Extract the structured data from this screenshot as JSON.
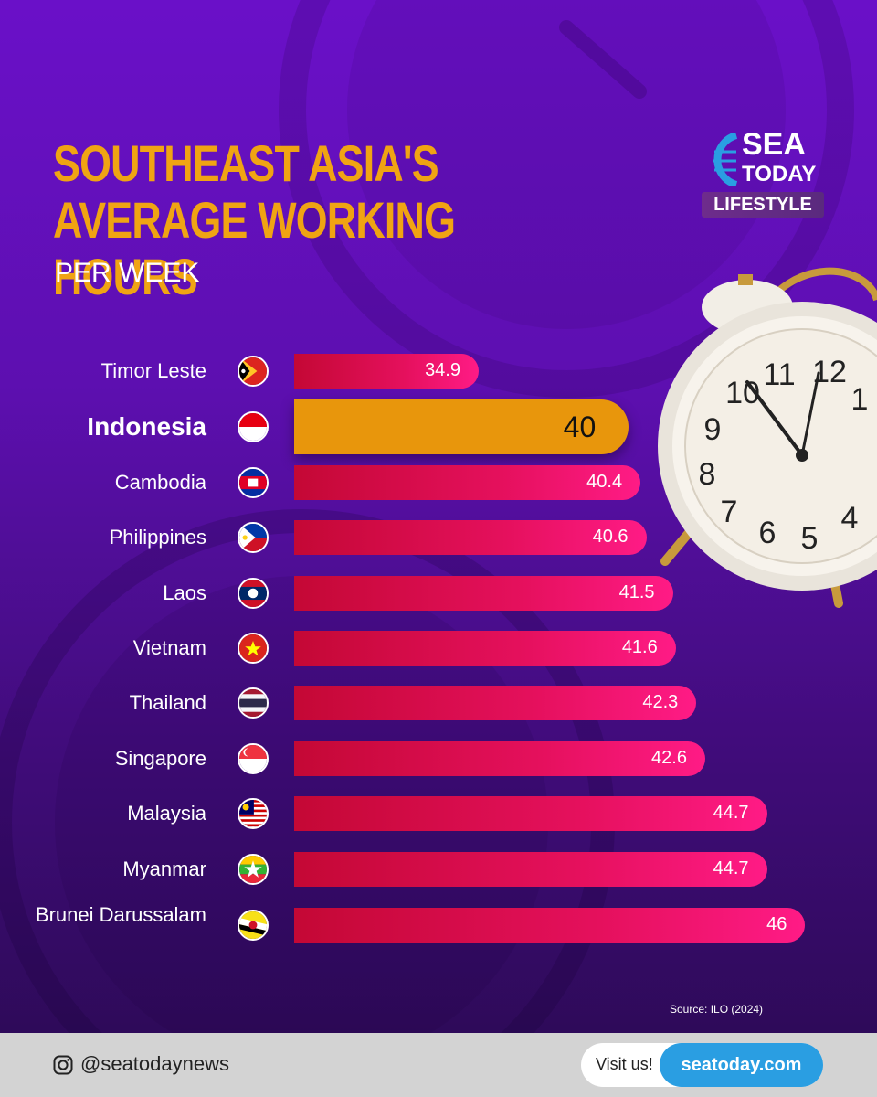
{
  "header": {
    "title": "SOUTHEAST ASIA'S AVERAGE WORKING HOURS",
    "subtitle": "PER WEEK"
  },
  "brand": {
    "line1": "SEA",
    "line2": "TODAY",
    "tag": "LIFESTYLE"
  },
  "chart_data": {
    "type": "bar",
    "orientation": "horizontal",
    "title": "SOUTHEAST ASIA'S AVERAGE WORKING HOURS",
    "subtitle": "PER WEEK",
    "categories": [
      "Timor Leste",
      "Indonesia",
      "Cambodia",
      "Philippines",
      "Laos",
      "Vietnam",
      "Thailand",
      "Singapore",
      "Malaysia",
      "Myanmar",
      "Brunei Darussalam"
    ],
    "value_labels": [
      "34.9",
      "40",
      "40.4",
      "40.6",
      "41.5",
      "41.6",
      "42.3",
      "42.6",
      "44.7",
      "44.7",
      "46"
    ],
    "values": [
      34.9,
      40,
      40.4,
      40.6,
      41.5,
      41.6,
      42.3,
      42.6,
      44.7,
      44.7,
      46
    ],
    "highlight": "Indonesia",
    "flag_icons": [
      "timor-leste-flag-icon",
      "indonesia-flag-icon",
      "cambodia-flag-icon",
      "philippines-flag-icon",
      "laos-flag-icon",
      "vietnam-flag-icon",
      "thailand-flag-icon",
      "singapore-flag-icon",
      "malaysia-flag-icon",
      "myanmar-flag-icon",
      "brunei-flag-icon"
    ],
    "colors": {
      "bar_start": "#c40835",
      "bar_end": "#ff1b86",
      "highlight": "#e8960c"
    }
  },
  "source": "Source: ILO (2024)",
  "footer": {
    "handle": "@seatodaynews",
    "visit_label": "Visit us!",
    "visit_link": "seatoday.com"
  },
  "colors": {
    "title": "#f0a413",
    "background": "#5d0fb0",
    "footer": "#d3d3d3",
    "link": "#2a9ee2"
  }
}
